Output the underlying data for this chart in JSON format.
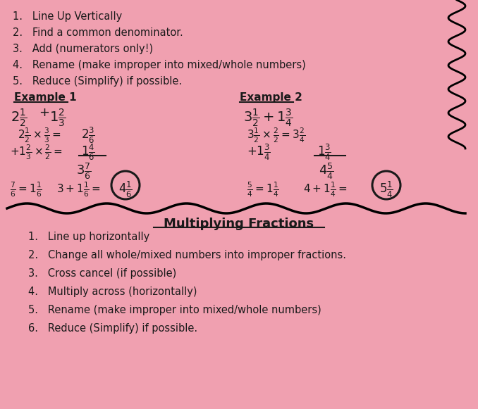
{
  "bg_color": "#f0a0b0",
  "text_color": "#1a1a1a",
  "adding_steps": [
    "1.   Line Up Vertically",
    "2.   Find a common denominator.",
    "3.   Add (numerators only!)",
    "4.   Rename (make improper into mixed/whole numbers)",
    "5.   Reduce (Simplify) if possible."
  ],
  "multiplying_steps": [
    "1.   Line up horizontally",
    "2.   Change all whole/mixed numbers into improper fractions.",
    "3.   Cross cancel (if possible)",
    "4.   Multiply across (horizontally)",
    "5.   Rename (make improper into mixed/whole numbers)",
    "6.   Reduce (Simplify) if possible."
  ],
  "example1_label": "Example 1",
  "example2_label": "Example 2",
  "mult_title": "Multiplying Fractions"
}
